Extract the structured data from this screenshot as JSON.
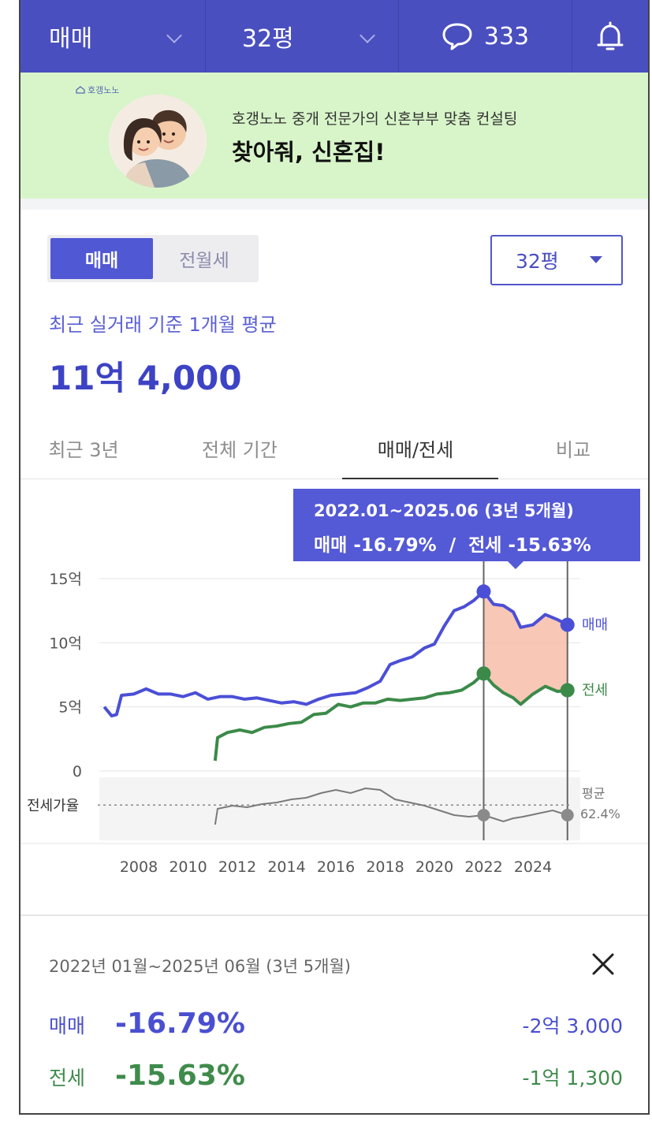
{
  "topbar": {
    "deal_type": "매매",
    "size": "32평",
    "chat_count": "333"
  },
  "banner": {
    "logo_text": "호갱노노",
    "subtitle": "호갱노노 중개 전문가의 신혼부부 맞춤 컨설팅",
    "title": "찾아줘, 신혼집!"
  },
  "controls": {
    "segments": [
      "매매",
      "전월세"
    ],
    "active_segment": "매매",
    "size_select": "32평"
  },
  "summary_price": {
    "label": "최근 실거래 기준 1개월 평균",
    "value": "11억 4,000"
  },
  "tabs": [
    {
      "label": "최근 3년"
    },
    {
      "label": "전체 기간"
    },
    {
      "label": "매매/전세",
      "active": true
    },
    {
      "label": "비교"
    }
  ],
  "tooltip": {
    "period": "2022.01~2025.06 (3년 5개월)",
    "sale_label": "매매",
    "sale_change": "-16.79%",
    "separator": "/",
    "jeonse_label": "전세",
    "jeonse_change": "-15.63%"
  },
  "chart_data": {
    "type": "line",
    "ylim": [
      0,
      15
    ],
    "y_ticks": [
      {
        "value": 15,
        "label": "15억"
      },
      {
        "value": 10,
        "label": "10억"
      },
      {
        "value": 5,
        "label": "5억"
      },
      {
        "value": 0,
        "label": "0"
      }
    ],
    "x_ticks": [
      "2008",
      "2010",
      "2012",
      "2014",
      "2016",
      "2018",
      "2020",
      "2022",
      "2024"
    ],
    "xlim": [
      2006.4,
      2025.6
    ],
    "series": [
      {
        "name": "매매",
        "color": "#4b4fd6",
        "points": [
          [
            2006.6,
            5.0
          ],
          [
            2006.9,
            4.3
          ],
          [
            2007.1,
            4.4
          ],
          [
            2007.3,
            5.9
          ],
          [
            2007.8,
            6.0
          ],
          [
            2008.3,
            6.4
          ],
          [
            2008.8,
            6.0
          ],
          [
            2009.3,
            6.0
          ],
          [
            2009.8,
            5.8
          ],
          [
            2010.3,
            6.1
          ],
          [
            2010.8,
            5.6
          ],
          [
            2011.3,
            5.8
          ],
          [
            2011.8,
            5.8
          ],
          [
            2012.3,
            5.6
          ],
          [
            2012.8,
            5.7
          ],
          [
            2013.3,
            5.5
          ],
          [
            2013.8,
            5.3
          ],
          [
            2014.3,
            5.4
          ],
          [
            2014.8,
            5.2
          ],
          [
            2015.3,
            5.6
          ],
          [
            2015.8,
            5.9
          ],
          [
            2016.3,
            6.0
          ],
          [
            2016.8,
            6.1
          ],
          [
            2017.3,
            6.5
          ],
          [
            2017.8,
            7.0
          ],
          [
            2018.2,
            8.3
          ],
          [
            2018.6,
            8.6
          ],
          [
            2019.1,
            8.9
          ],
          [
            2019.6,
            9.6
          ],
          [
            2020.0,
            9.9
          ],
          [
            2020.4,
            11.3
          ],
          [
            2020.8,
            12.5
          ],
          [
            2021.2,
            12.8
          ],
          [
            2021.6,
            13.3
          ],
          [
            2022.0,
            14.0
          ],
          [
            2022.4,
            13.0
          ],
          [
            2022.8,
            12.9
          ],
          [
            2023.2,
            12.4
          ],
          [
            2023.5,
            11.2
          ],
          [
            2024.0,
            11.4
          ],
          [
            2024.5,
            12.2
          ],
          [
            2025.0,
            11.8
          ],
          [
            2025.4,
            11.4
          ]
        ],
        "end_label": "매매"
      },
      {
        "name": "전세",
        "color": "#3b8a49",
        "points": [
          [
            2011.1,
            0.8
          ],
          [
            2011.2,
            2.6
          ],
          [
            2011.6,
            3.0
          ],
          [
            2012.1,
            3.2
          ],
          [
            2012.6,
            3.0
          ],
          [
            2013.1,
            3.4
          ],
          [
            2013.6,
            3.5
          ],
          [
            2014.1,
            3.7
          ],
          [
            2014.6,
            3.8
          ],
          [
            2015.1,
            4.4
          ],
          [
            2015.6,
            4.5
          ],
          [
            2016.1,
            5.2
          ],
          [
            2016.6,
            5.0
          ],
          [
            2017.1,
            5.3
          ],
          [
            2017.6,
            5.3
          ],
          [
            2018.1,
            5.6
          ],
          [
            2018.6,
            5.5
          ],
          [
            2019.1,
            5.6
          ],
          [
            2019.6,
            5.7
          ],
          [
            2020.1,
            6.0
          ],
          [
            2020.6,
            6.1
          ],
          [
            2021.1,
            6.3
          ],
          [
            2021.6,
            6.9
          ],
          [
            2022.0,
            7.6
          ],
          [
            2022.4,
            6.7
          ],
          [
            2022.8,
            6.1
          ],
          [
            2023.2,
            5.7
          ],
          [
            2023.5,
            5.2
          ],
          [
            2024.0,
            6.0
          ],
          [
            2024.5,
            6.6
          ],
          [
            2025.0,
            6.2
          ],
          [
            2025.4,
            6.3
          ]
        ],
        "end_label": "전세"
      }
    ],
    "ratio_panel": {
      "label": "전세가율",
      "avg_label": "평균",
      "avg_value": "62.4%",
      "avg": 62.4,
      "ylim": [
        40,
        80
      ],
      "points": [
        [
          2011.1,
          50
        ],
        [
          2011.2,
          60
        ],
        [
          2011.8,
          62
        ],
        [
          2012.4,
          61
        ],
        [
          2013.0,
          63
        ],
        [
          2013.6,
          64
        ],
        [
          2014.2,
          66
        ],
        [
          2014.8,
          67
        ],
        [
          2015.4,
          70
        ],
        [
          2016.0,
          72
        ],
        [
          2016.6,
          70
        ],
        [
          2017.2,
          73
        ],
        [
          2017.8,
          72
        ],
        [
          2018.4,
          66
        ],
        [
          2019.0,
          64
        ],
        [
          2019.6,
          62
        ],
        [
          2020.2,
          59
        ],
        [
          2020.8,
          56
        ],
        [
          2021.4,
          55
        ],
        [
          2022.0,
          56
        ],
        [
          2022.4,
          54
        ],
        [
          2022.8,
          52
        ],
        [
          2023.2,
          54
        ],
        [
          2023.6,
          55
        ],
        [
          2024.2,
          57
        ],
        [
          2024.8,
          59
        ],
        [
          2025.4,
          56
        ]
      ]
    },
    "highlight_range": [
      2022.0,
      2025.4
    ]
  },
  "summary": {
    "period": "2022년 01월~2025년 06월 (3년 5개월)",
    "rows": [
      {
        "label": "매매",
        "percent": "-16.79%",
        "amount": "-2억 3,000"
      },
      {
        "label": "전세",
        "percent": "-15.63%",
        "amount": "-1억 1,300"
      }
    ]
  }
}
